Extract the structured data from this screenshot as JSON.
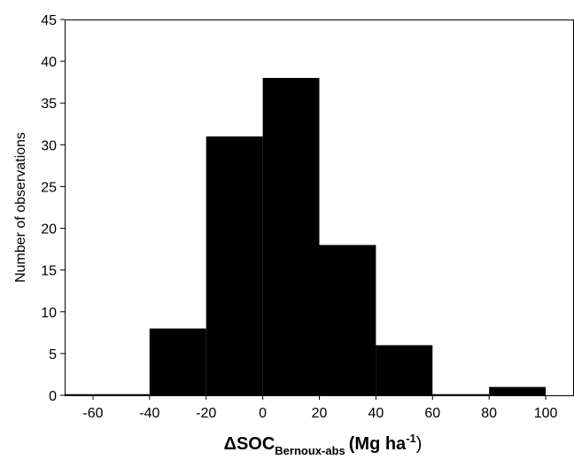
{
  "chart_data": {
    "type": "bar",
    "title": "",
    "ylabel": "Number of observations",
    "xlabel": {
      "prefix": "ΔSOC",
      "subscript": "Bernoux-abs",
      "unit_open": "(Mg ha",
      "unit_sup": "-1",
      "unit_close": ")"
    },
    "bin_edges": [
      -70,
      -40,
      -20,
      0,
      20,
      40,
      60,
      80,
      100
    ],
    "values": [
      0,
      8,
      31,
      38,
      18,
      6,
      0,
      1
    ],
    "xlim": [
      -70,
      110
    ],
    "ylim": [
      0,
      45
    ],
    "x_ticks": [
      -60,
      -40,
      -20,
      0,
      20,
      40,
      60,
      80,
      100
    ],
    "y_ticks": [
      0,
      5,
      10,
      15,
      20,
      25,
      30,
      35,
      40,
      45
    ],
    "grid": false,
    "bar_color": "#000000"
  }
}
